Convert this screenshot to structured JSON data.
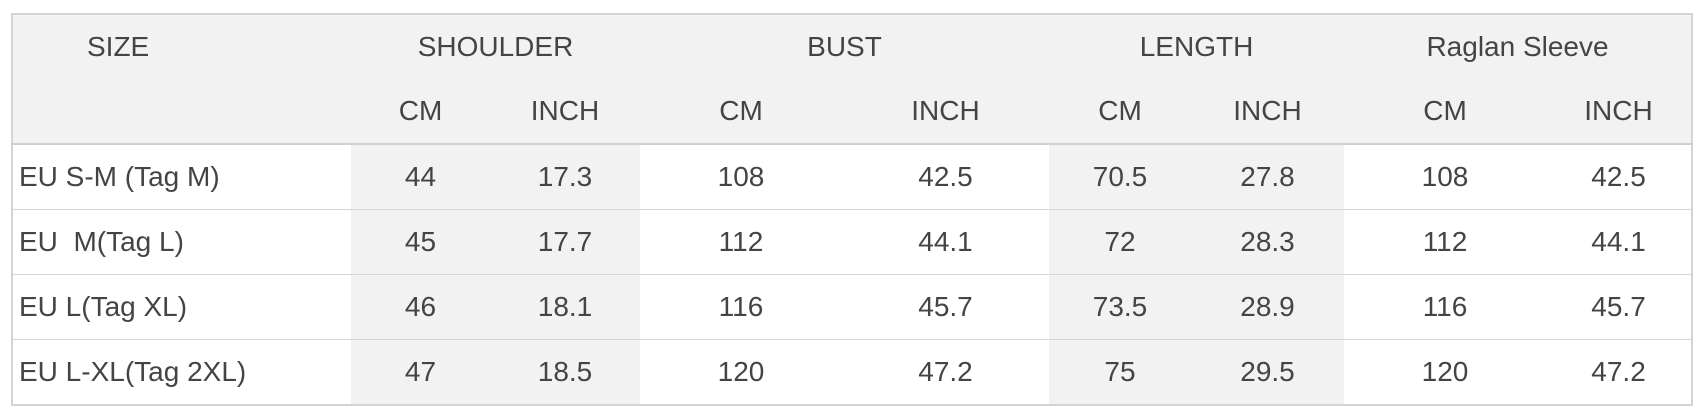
{
  "table": {
    "groups": [
      "SIZE",
      "SHOULDER",
      "BUST",
      "LENGTH",
      "Raglan Sleeve"
    ],
    "subheaders": [
      "CM",
      "INCH",
      "CM",
      "INCH",
      "CM",
      "INCH",
      "CM",
      "INCH"
    ],
    "rows": [
      [
        "EU S-M (Tag M)",
        "44",
        "17.3",
        "108",
        "42.5",
        "70.5",
        "27.8",
        "108",
        "42.5"
      ],
      [
        "EU  M(Tag L)",
        "45",
        "17.7",
        "112",
        "44.1",
        "72",
        "28.3",
        "112",
        "44.1"
      ],
      [
        "EU L(Tag XL)",
        "46",
        "18.1",
        "116",
        "45.7",
        "73.5",
        "28.9",
        "116",
        "45.7"
      ],
      [
        "EU L-XL(Tag 2XL)",
        "47",
        "18.5",
        "120",
        "47.2",
        "75",
        "29.5",
        "120",
        "47.2"
      ]
    ]
  }
}
